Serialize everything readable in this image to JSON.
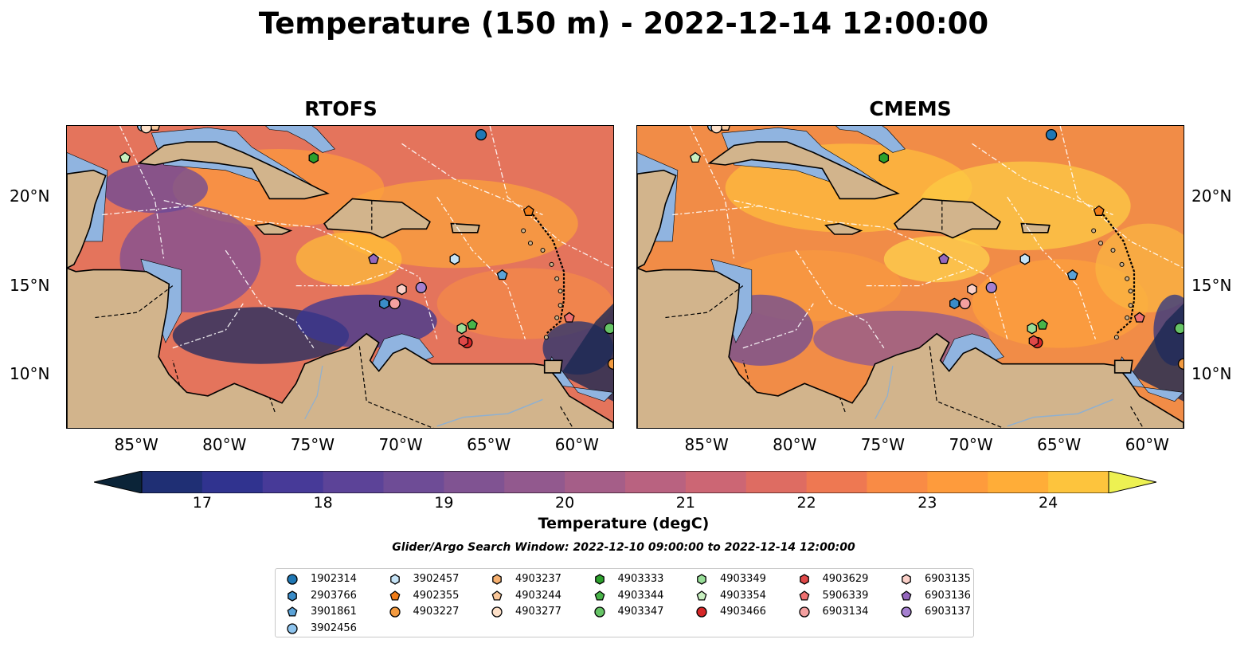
{
  "title": "Temperature (150 m) - 2022-12-14 12:00:00",
  "panels": [
    {
      "id": "rtofs",
      "title": "RTOFS"
    },
    {
      "id": "cmems",
      "title": "CMEMS"
    }
  ],
  "map": {
    "lon_range": [
      -89,
      -58
    ],
    "lat_range": [
      7,
      24
    ],
    "lon_ticks": [
      "85°W",
      "80°W",
      "75°W",
      "70°W",
      "65°W",
      "60°W"
    ],
    "lat_ticks": [
      "20°N",
      "15°N",
      "10°N"
    ],
    "land_color": "#d2b48c",
    "shallow_color": "#90b4e0",
    "deep_color": "#0a2530"
  },
  "colorbar": {
    "label": "Temperature (degC)",
    "ticks": [
      "17",
      "18",
      "19",
      "20",
      "21",
      "22",
      "23",
      "24"
    ],
    "min": 16.5,
    "max": 24.5,
    "colors": [
      "#0b2438",
      "#14284f",
      "#1f2f74",
      "#30338f",
      "#473a98",
      "#5c4398",
      "#6e4c96",
      "#805392",
      "#92598e",
      "#a55e88",
      "#b96280",
      "#cc6674",
      "#de6c62",
      "#ee7852",
      "#f98b45",
      "#fe9b3c",
      "#ffad38",
      "#fdc43d",
      "#f4e34a",
      "#edf152"
    ]
  },
  "search_window": "Glider/Argo Search Window: 2022-12-10 09:00:00 to 2022-12-14 12:00:00",
  "floats": [
    {
      "id": "1902314",
      "color": "#1f77b4",
      "shape": "circle",
      "lon": -65.5,
      "lat": 23.5
    },
    {
      "id": "2903766",
      "color": "#3a8cc8",
      "shape": "hexagon",
      "lon": -71.0,
      "lat": 14.0
    },
    {
      "id": "3901861",
      "color": "#5ba3d8",
      "shape": "pentagon",
      "lon": -64.3,
      "lat": 15.6
    },
    {
      "id": "3902456",
      "color": "#8ec4ee",
      "shape": "circle",
      "lon": -84.7,
      "lat": 24.0
    },
    {
      "id": "3902457",
      "color": "#c6e4f7",
      "shape": "hexagon",
      "lon": -67.0,
      "lat": 16.5
    },
    {
      "id": "4902355",
      "color": "#f07c18",
      "shape": "pentagon",
      "lon": -62.8,
      "lat": 19.2
    },
    {
      "id": "4903227",
      "color": "#f39a3f",
      "shape": "circle",
      "lon": -58.0,
      "lat": 10.6
    },
    {
      "id": "4903237",
      "color": "#f6b070",
      "shape": "hexagon",
      "lon": -84.3,
      "lat": 24.0
    },
    {
      "id": "4903244",
      "color": "#f9c79a",
      "shape": "pentagon",
      "lon": -84.0,
      "lat": 24.0
    },
    {
      "id": "4903277",
      "color": "#fde0c8",
      "shape": "circle",
      "lon": -84.5,
      "lat": 23.9
    },
    {
      "id": "4903333",
      "color": "#2ca02c",
      "shape": "hexagon",
      "lon": -75.0,
      "lat": 22.2
    },
    {
      "id": "4903344",
      "color": "#49b449",
      "shape": "pentagon",
      "lon": -66.0,
      "lat": 12.8
    },
    {
      "id": "4903347",
      "color": "#66c466",
      "shape": "circle",
      "lon": -58.2,
      "lat": 12.6
    },
    {
      "id": "4903349",
      "color": "#98de98",
      "shape": "hexagon",
      "lon": -66.6,
      "lat": 12.6
    },
    {
      "id": "4903354",
      "color": "#c8f0c0",
      "shape": "pentagon",
      "lon": -85.7,
      "lat": 22.2
    },
    {
      "id": "4903466",
      "color": "#d62728",
      "shape": "circle",
      "lon": -66.3,
      "lat": 11.8
    },
    {
      "id": "4903629",
      "color": "#e04848",
      "shape": "hexagon",
      "lon": -66.5,
      "lat": 11.9
    },
    {
      "id": "5906339",
      "color": "#ef7070",
      "shape": "pentagon",
      "lon": -60.5,
      "lat": 13.2
    },
    {
      "id": "6903134",
      "color": "#f4a0a0",
      "shape": "circle",
      "lon": -70.4,
      "lat": 14.0
    },
    {
      "id": "6903135",
      "color": "#fbd0c8",
      "shape": "hexagon",
      "lon": -70.0,
      "lat": 14.8
    },
    {
      "id": "6903136",
      "color": "#9467bd",
      "shape": "pentagon",
      "lon": -71.6,
      "lat": 16.5
    },
    {
      "id": "6903137",
      "color": "#a580d0",
      "shape": "circle",
      "lon": -68.9,
      "lat": 14.9
    }
  ]
}
